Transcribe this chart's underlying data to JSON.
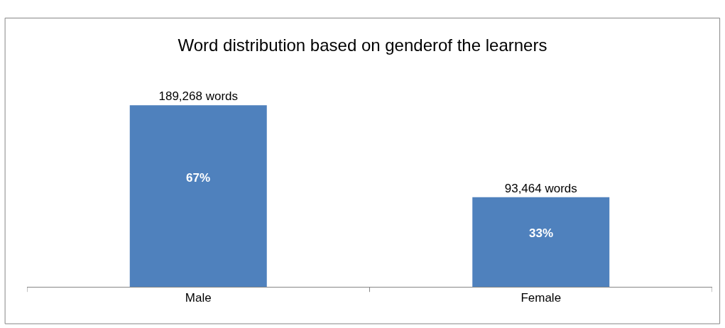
{
  "chart_data": {
    "type": "bar",
    "title": "Word distribution based on genderof the learners",
    "categories": [
      "Male",
      "Female"
    ],
    "values": [
      189268,
      93464
    ],
    "value_labels": [
      "189,268 words",
      "93,464 words"
    ],
    "color": "#4f81bd",
    "annotations": [
      "67%",
      "33%"
    ]
  }
}
